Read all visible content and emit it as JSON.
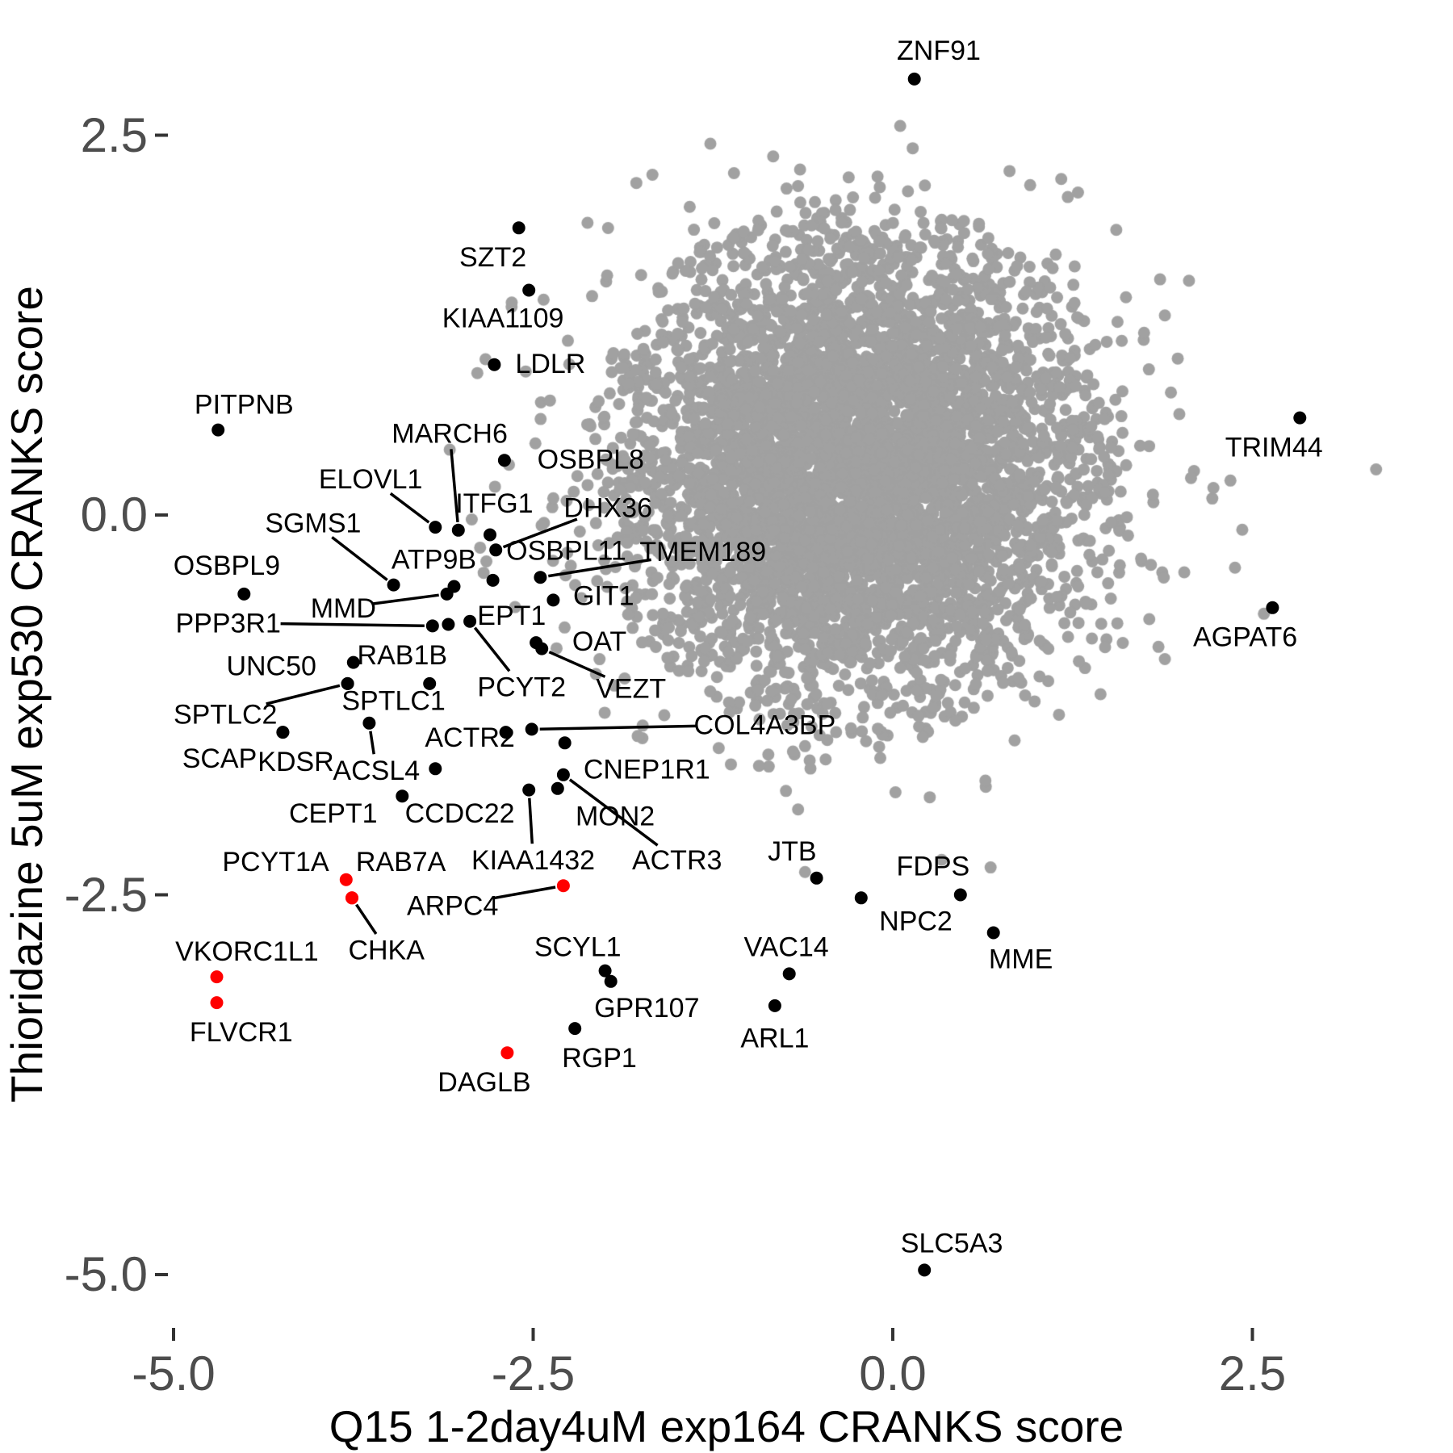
{
  "figure": {
    "background": "#ffffff",
    "description": "Scatter plot comparing CRANKS scores of two screens with labeled gene hits"
  },
  "colors": {
    "cloud_point": "#a1a1a1",
    "hit_point": "#000000",
    "red_hit_point": "#ff0000",
    "tick_text": "#4d4d4d",
    "tick_mark": "#333333",
    "segment": "#000000"
  },
  "axes": {
    "x": {
      "title": "Q15 1-2day4uM exp164 CRANKS score",
      "ticks": [
        {
          "label": "-5.0",
          "value": -5.0
        },
        {
          "label": "-2.5",
          "value": -2.5
        },
        {
          "label": "0.0",
          "value": 0.0
        },
        {
          "label": "2.5",
          "value": 2.5
        }
      ]
    },
    "y": {
      "title": "Thioridazine 5uM exp530 CRANKS score",
      "ticks": [
        {
          "label": "2.5",
          "value": 2.5
        },
        {
          "label": "0.0",
          "value": 0.0
        },
        {
          "label": "-2.5",
          "value": -2.5
        },
        {
          "label": "-5.0",
          "value": -5.0
        }
      ]
    }
  },
  "chart_data": {
    "type": "scatter",
    "xlabel": "Q15 1-2day4uM exp164 CRANKS score",
    "ylabel": "Thioridazine 5uM exp530 CRANKS score",
    "xlim": [
      -6.2,
      3.9
    ],
    "ylim": [
      -5.4,
      3.4
    ],
    "grid": false,
    "legend": "none",
    "cloud": {
      "comment": "unlabeled background genes, dense gaussian blob",
      "center": [
        -0.25,
        0.3
      ],
      "core": {
        "n": 5600,
        "sigma": [
          0.82,
          0.78
        ],
        "max_norm": 2.3
      },
      "ring": {
        "n": 1000,
        "sigma": [
          1.12,
          0.95
        ],
        "min_norm": 1.7,
        "max_norm": 2.45
      },
      "seed": 42,
      "extra_points": [
        [
          3.36,
          0.3
        ],
        [
          -3.08,
          0.43
        ],
        [
          2.58,
          -0.65
        ],
        [
          -2.36,
          0.11
        ],
        [
          -0.61,
          -2.35
        ],
        [
          0.34,
          -2.27
        ],
        [
          0.68,
          -2.32
        ]
      ]
    },
    "genes": [
      {
        "n": "ZNF91",
        "x": 0.15,
        "y": 2.87,
        "lx": 0.32,
        "ly": 3.06,
        "c": "b",
        "s": false
      },
      {
        "n": "SZT2",
        "x": -2.6,
        "y": 1.89,
        "lx": -2.78,
        "ly": 1.7,
        "c": "b",
        "s": false
      },
      {
        "n": "KIAA1109",
        "x": -2.53,
        "y": 1.48,
        "lx": -2.71,
        "ly": 1.3,
        "c": "b",
        "s": false
      },
      {
        "n": "LDLR",
        "x": -2.77,
        "y": 0.99,
        "lx": -2.38,
        "ly": 1.0,
        "c": "b",
        "s": false
      },
      {
        "n": "PITPNB",
        "x": -4.69,
        "y": 0.56,
        "lx": -4.51,
        "ly": 0.73,
        "c": "b",
        "s": false
      },
      {
        "n": "OSBPL8",
        "x": -2.7,
        "y": 0.36,
        "lx": -2.1,
        "ly": 0.37,
        "c": "b",
        "s": false
      },
      {
        "n": "MARCH6",
        "x": -3.02,
        "y": -0.1,
        "lx": -3.08,
        "ly": 0.54,
        "c": "b",
        "s": true
      },
      {
        "n": "ELOVL1",
        "x": -3.18,
        "y": -0.08,
        "lx": -3.63,
        "ly": 0.24,
        "c": "b",
        "s": true
      },
      {
        "n": "ITFG1",
        "x": -2.8,
        "y": -0.13,
        "lx": -2.77,
        "ly": 0.08,
        "c": "b",
        "s": false
      },
      {
        "n": "DHX36",
        "x": -2.76,
        "y": -0.23,
        "lx": -1.98,
        "ly": 0.05,
        "c": "b",
        "s": true
      },
      {
        "n": "SGMS1",
        "x": -3.47,
        "y": -0.46,
        "lx": -4.03,
        "ly": -0.05,
        "c": "b",
        "s": true
      },
      {
        "n": "OSBPL9",
        "x": -4.51,
        "y": -0.52,
        "lx": -4.63,
        "ly": -0.33,
        "c": "b",
        "s": false
      },
      {
        "n": "ATP9B",
        "x": -3.05,
        "y": -0.47,
        "lx": -3.19,
        "ly": -0.29,
        "c": "b",
        "s": false
      },
      {
        "n": "OSBPL11",
        "x": -2.78,
        "y": -0.43,
        "lx": -2.27,
        "ly": -0.23,
        "c": "b",
        "s": false
      },
      {
        "n": "TMEM189",
        "x": -2.45,
        "y": -0.41,
        "lx": -1.32,
        "ly": -0.24,
        "c": "b",
        "s": true
      },
      {
        "n": "MMD",
        "x": -3.1,
        "y": -0.52,
        "lx": -3.82,
        "ly": -0.61,
        "c": "b",
        "s": true
      },
      {
        "n": "GIT1",
        "x": -2.36,
        "y": -0.56,
        "lx": -2.01,
        "ly": -0.53,
        "c": "b",
        "s": false
      },
      {
        "n": "PPP3R1",
        "x": -3.2,
        "y": -0.73,
        "lx": -4.62,
        "ly": -0.71,
        "c": "b",
        "s": true
      },
      {
        "n": "EPT1",
        "x": -3.09,
        "y": -0.72,
        "lx": -2.65,
        "ly": -0.66,
        "c": "b",
        "s": false
      },
      {
        "n": "OAT",
        "x": -2.48,
        "y": -0.84,
        "lx": -2.04,
        "ly": -0.83,
        "c": "b",
        "s": false
      },
      {
        "n": "RAB1B",
        "x": -3.75,
        "y": -0.97,
        "lx": -3.41,
        "ly": -0.92,
        "c": "b",
        "s": false
      },
      {
        "n": "UNC50",
        "x": -3.79,
        "y": -1.11,
        "lx": -4.32,
        "ly": -0.99,
        "c": "b",
        "s": false
      },
      {
        "n": "PCYT2",
        "x": -2.94,
        "y": -0.7,
        "lx": -2.58,
        "ly": -1.13,
        "c": "b",
        "s": true
      },
      {
        "n": "VEZT",
        "x": -2.44,
        "y": -0.88,
        "lx": -1.82,
        "ly": -1.14,
        "c": "b",
        "s": true
      },
      {
        "n": "SPTLC1",
        "x": -3.22,
        "y": -1.11,
        "lx": -3.47,
        "ly": -1.22,
        "c": "b",
        "s": false
      },
      {
        "n": "SPTLC2",
        "x": -3.79,
        "y": -1.11,
        "lx": -4.64,
        "ly": -1.31,
        "c": "b",
        "s": true
      },
      {
        "n": "COL4A3BP",
        "x": -2.51,
        "y": -1.41,
        "lx": -0.89,
        "ly": -1.38,
        "c": "b",
        "s": true
      },
      {
        "n": "ACTR2",
        "x": -2.69,
        "y": -1.43,
        "lx": -2.94,
        "ly": -1.46,
        "c": "b",
        "s": false
      },
      {
        "n": "SCAP",
        "x": -4.24,
        "y": -1.43,
        "lx": -4.68,
        "ly": -1.6,
        "c": "b",
        "s": false
      },
      {
        "n": "KDSR",
        "x": -4.24,
        "y": -1.43,
        "lx": -4.15,
        "ly": -1.62,
        "c": "b",
        "s": false
      },
      {
        "n": "ACSL4",
        "x": -3.64,
        "y": -1.37,
        "lx": -3.59,
        "ly": -1.68,
        "c": "b",
        "s": true
      },
      {
        "n": "CNEP1R1",
        "x": -2.28,
        "y": -1.5,
        "lx": -1.71,
        "ly": -1.67,
        "c": "b",
        "s": false
      },
      {
        "n": "CEPT1",
        "x": -3.41,
        "y": -1.85,
        "lx": -3.89,
        "ly": -1.96,
        "c": "b",
        "s": false
      },
      {
        "n": "CCDC22",
        "x": -3.18,
        "y": -1.67,
        "lx": -3.01,
        "ly": -1.96,
        "c": "b",
        "s": false
      },
      {
        "n": "MON2",
        "x": -2.33,
        "y": -1.8,
        "lx": -1.93,
        "ly": -1.98,
        "c": "b",
        "s": false
      },
      {
        "n": "KIAA1432",
        "x": -2.53,
        "y": -1.81,
        "lx": -2.5,
        "ly": -2.27,
        "c": "b",
        "s": true
      },
      {
        "n": "ACTR3",
        "x": -2.29,
        "y": -1.71,
        "lx": -1.5,
        "ly": -2.27,
        "c": "b",
        "s": true
      },
      {
        "n": "JTB",
        "x": -0.53,
        "y": -2.39,
        "lx": -0.7,
        "ly": -2.21,
        "c": "b",
        "s": false
      },
      {
        "n": "FDPS",
        "x": 0.47,
        "y": -2.5,
        "lx": 0.28,
        "ly": -2.31,
        "c": "b",
        "s": false
      },
      {
        "n": "NPC2",
        "x": -0.22,
        "y": -2.52,
        "lx": 0.16,
        "ly": -2.67,
        "c": "b",
        "s": false
      },
      {
        "n": "MME",
        "x": 0.7,
        "y": -2.75,
        "lx": 0.89,
        "ly": -2.92,
        "c": "b",
        "s": false
      },
      {
        "n": "VAC14",
        "x": -0.72,
        "y": -3.02,
        "lx": -0.74,
        "ly": -2.84,
        "c": "b",
        "s": false
      },
      {
        "n": "ARL1",
        "x": -0.82,
        "y": -3.23,
        "lx": -0.82,
        "ly": -3.44,
        "c": "b",
        "s": false
      },
      {
        "n": "SCYL1",
        "x": -2.0,
        "y": -3.0,
        "lx": -2.19,
        "ly": -2.84,
        "c": "b",
        "s": false
      },
      {
        "n": "GPR107",
        "x": -1.96,
        "y": -3.07,
        "lx": -1.71,
        "ly": -3.24,
        "c": "b",
        "s": false
      },
      {
        "n": "RGP1",
        "x": -2.21,
        "y": -3.38,
        "lx": -2.04,
        "ly": -3.57,
        "c": "b",
        "s": false
      },
      {
        "n": "TRIM44",
        "x": 2.83,
        "y": 0.64,
        "lx": 2.65,
        "ly": 0.45,
        "c": "b",
        "s": false
      },
      {
        "n": "AGPAT6",
        "x": 2.64,
        "y": -0.61,
        "lx": 2.45,
        "ly": -0.8,
        "c": "b",
        "s": false
      },
      {
        "n": "SLC5A3",
        "x": 0.22,
        "y": -4.97,
        "lx": 0.41,
        "ly": -4.79,
        "c": "b",
        "s": false
      },
      {
        "n": "PCYT1A",
        "x": -3.8,
        "y": -2.4,
        "lx": -4.29,
        "ly": -2.28,
        "c": "r",
        "s": false
      },
      {
        "n": "RAB7A",
        "x": -3.76,
        "y": -2.52,
        "lx": -3.42,
        "ly": -2.28,
        "c": "r",
        "s": false
      },
      {
        "n": "CHKA",
        "x": -3.76,
        "y": -2.52,
        "lx": -3.52,
        "ly": -2.86,
        "c": "r",
        "s": true
      },
      {
        "n": "VKORC1L1",
        "x": -4.7,
        "y": -3.04,
        "lx": -4.49,
        "ly": -2.87,
        "c": "r",
        "s": false
      },
      {
        "n": "FLVCR1",
        "x": -4.7,
        "y": -3.21,
        "lx": -4.53,
        "ly": -3.4,
        "c": "r",
        "s": false
      },
      {
        "n": "ARPC4",
        "x": -2.29,
        "y": -2.44,
        "lx": -3.06,
        "ly": -2.57,
        "c": "r",
        "s": true
      },
      {
        "n": "DAGLB",
        "x": -2.68,
        "y": -3.54,
        "lx": -2.84,
        "ly": -3.73,
        "c": "r",
        "s": false
      }
    ]
  }
}
